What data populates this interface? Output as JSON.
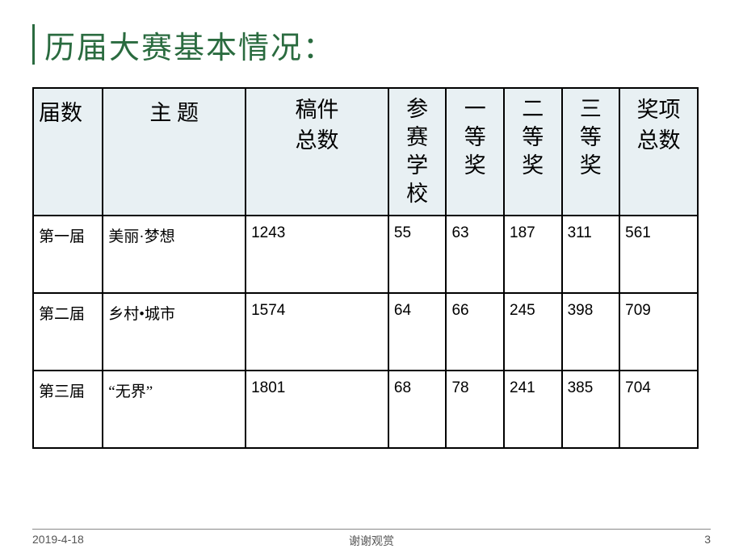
{
  "title": "历届大赛基本情况：",
  "table": {
    "columns": [
      {
        "key": "session",
        "label": "届数",
        "class": "col-session",
        "header_style": "plain"
      },
      {
        "key": "theme",
        "label": "主 题",
        "class": "col-theme",
        "header_style": "plain"
      },
      {
        "key": "manuscripts",
        "label": "稿件\n总数",
        "class": "col-total",
        "header_style": "two-line"
      },
      {
        "key": "schools",
        "label": "参赛学校",
        "class": "col-narrow",
        "header_style": "vertical"
      },
      {
        "key": "first",
        "label": "一等奖",
        "class": "col-narrow",
        "header_style": "vertical"
      },
      {
        "key": "second",
        "label": "二等奖",
        "class": "col-narrow",
        "header_style": "vertical"
      },
      {
        "key": "third",
        "label": "三等奖",
        "class": "col-narrow",
        "header_style": "vertical"
      },
      {
        "key": "awards",
        "label": "奖项\n总数",
        "class": "col-last",
        "header_style": "two-line"
      }
    ],
    "rows": [
      {
        "session": "第一届",
        "theme": "美丽·梦想",
        "manuscripts": "1243",
        "schools": "55",
        "first": "63",
        "second": "187",
        "third": "311",
        "awards": "561"
      },
      {
        "session": "第二届",
        "theme": "乡村•城市",
        "manuscripts": "1574",
        "schools": "64",
        "first": "66",
        "second": "245",
        "third": "398",
        "awards": "709"
      },
      {
        "session": "第三届",
        "theme": "“无界”",
        "manuscripts": "1801",
        "schools": "68",
        "first": "78",
        "second": "241",
        "third": "385",
        "awards": "704"
      }
    ]
  },
  "footer": {
    "date": "2019-4-18",
    "center": "谢谢观赏",
    "page": "3"
  },
  "colors": {
    "title": "#2a6b3f",
    "header_bg": "#e8f0f3",
    "border": "#000000",
    "footer_text": "#555555"
  }
}
